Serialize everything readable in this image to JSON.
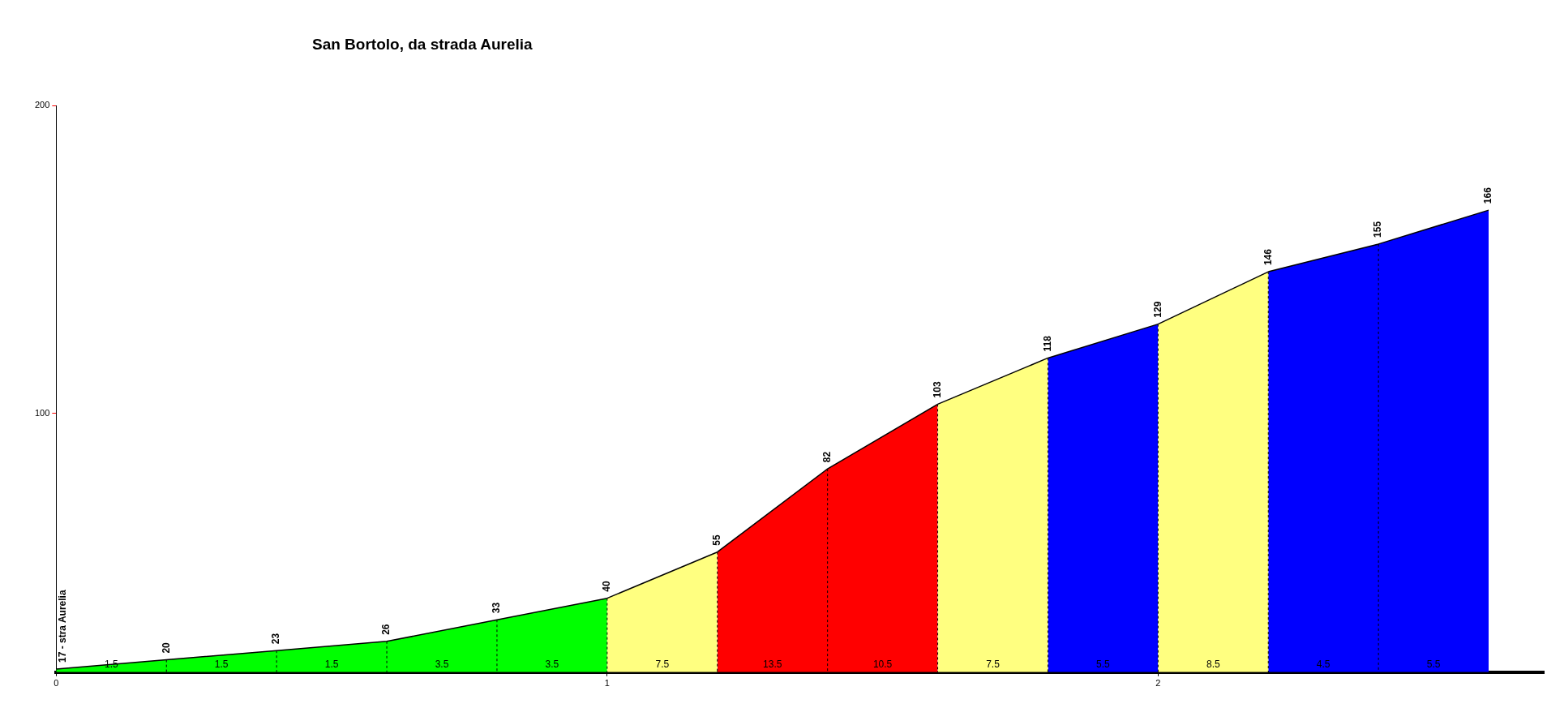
{
  "chart_data": {
    "type": "area",
    "title": "San Bortolo, da strada Aurelia",
    "series": [
      {
        "color": "#00ff00",
        "x": [
          0,
          0.2,
          0.4,
          0.6,
          0.8,
          1
        ],
        "values": [
          17,
          20,
          23,
          26,
          33,
          40
        ],
        "value_labels": [
          "17 - stra Aurelia",
          "20",
          "23",
          "26",
          "33",
          "40"
        ]
      },
      {
        "color": "#ffff80",
        "x": [
          1,
          1.2
        ],
        "values": [
          40,
          55
        ],
        "value_labels": [
          null,
          "55"
        ]
      },
      {
        "color": "#ff0000",
        "x": [
          1.2,
          1.4,
          1.6
        ],
        "values": [
          55,
          82,
          103
        ],
        "value_labels": [
          null,
          "82",
          "103"
        ]
      },
      {
        "color": "#ffff80",
        "x": [
          1.6,
          1.8
        ],
        "values": [
          103,
          118
        ],
        "value_labels": [
          null,
          "118"
        ]
      },
      {
        "color": "#0000ff",
        "x": [
          1.8,
          2
        ],
        "values": [
          118,
          129
        ],
        "value_labels": [
          null,
          "129"
        ]
      },
      {
        "color": "#ffff80",
        "x": [
          2,
          2.2
        ],
        "values": [
          129,
          146
        ],
        "value_labels": [
          null,
          "146"
        ]
      },
      {
        "color": "#0000ff",
        "x": [
          2.2,
          2.4,
          2.6
        ],
        "values": [
          146,
          155,
          166
        ],
        "value_labels": [
          null,
          "155",
          "166"
        ]
      }
    ],
    "annotations": [
      "1.5",
      "1.5",
      "1.5",
      "3.5",
      "3.5",
      "7.5",
      "13.5",
      "10.5",
      "7.5",
      "5.5",
      "8.5",
      "4.5",
      "5.5"
    ],
    "xlim": [
      0,
      2.7
    ],
    "xticks": [
      0,
      1,
      2
    ],
    "ylim": [
      16,
      200
    ],
    "yticks": [
      100,
      200
    ],
    "grid": false,
    "legend": false,
    "marker": "none",
    "line_style": "solid"
  }
}
